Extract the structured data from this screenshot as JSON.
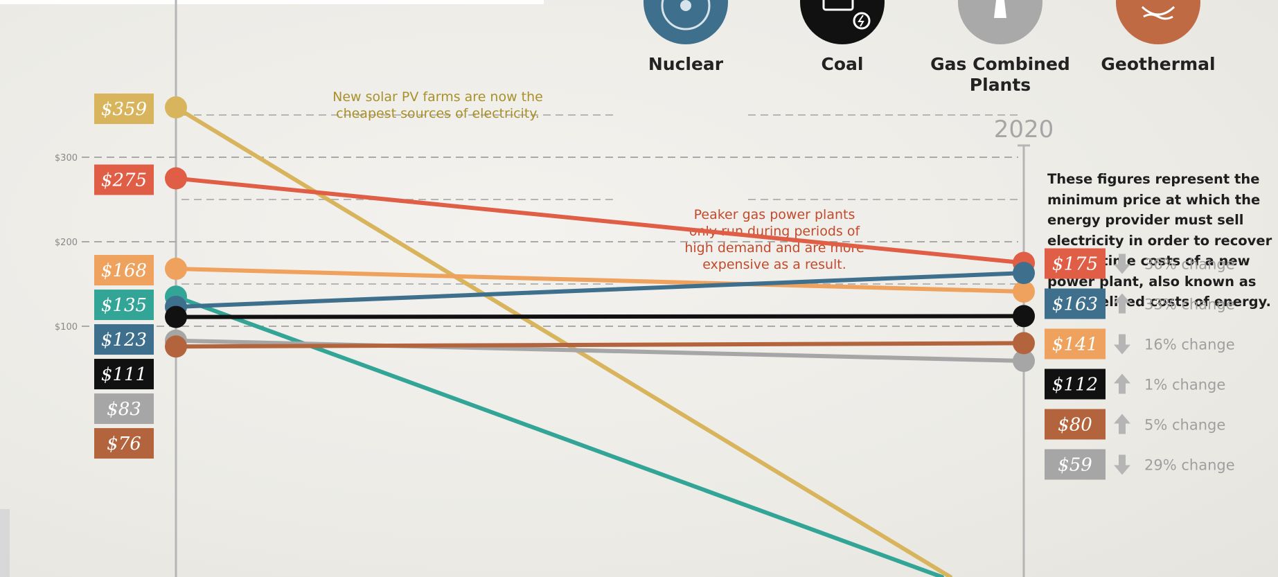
{
  "sources": [
    {
      "name": "Nuclear",
      "icon": "nuclear-icon",
      "color": "#3e6f8c"
    },
    {
      "name": "Coal",
      "icon": "coal-icon",
      "color": "#111111"
    },
    {
      "name": "Gas Combined Plants",
      "name_line1": "Gas Combined",
      "name_line2": "Plants",
      "icon": "gas-icon",
      "color": "#a9a9a9"
    },
    {
      "name": "Geothermal",
      "icon": "geothermal-icon",
      "color": "#bf6a42"
    }
  ],
  "year_end_label": "2020",
  "note": "These figures represent the minimum price at which the energy provider must sell electricity in order to recover the lifetime costs of a new power plant, also known as the levelized costs of energy.",
  "annotations": [
    {
      "lines": [
        "New solar PV farms are now the",
        "cheapest sources of electricity."
      ],
      "color": "#a8902a"
    },
    {
      "lines": [
        "Peaker gas power plants",
        "only run during periods of",
        "high demand and are more",
        "expensive as a result."
      ],
      "color": "#c24a2c"
    }
  ],
  "chart_data": {
    "type": "line",
    "y_ticks": [
      "$300",
      "$200",
      "$100"
    ],
    "grid": true,
    "ylim": [
      0,
      400
    ],
    "series": [
      {
        "start": 359,
        "end": null,
        "start_label": "$359",
        "end_label": null,
        "color": "#d8b45c",
        "change": null,
        "dir": null
      },
      {
        "start": 275,
        "end": 175,
        "start_label": "$275",
        "end_label": "$175",
        "color": "#df5e45",
        "change": "36% change",
        "dir": "down"
      },
      {
        "start": 168,
        "end": 141,
        "start_label": "$168",
        "end_label": "$141",
        "color": "#eea25d",
        "change": "16% change",
        "dir": "down"
      },
      {
        "start": 135,
        "end": null,
        "start_label": "$135",
        "end_label": null,
        "color": "#33a597",
        "change": null,
        "dir": null
      },
      {
        "start": 123,
        "end": 163,
        "start_label": "$123",
        "end_label": "$163",
        "color": "#3e6f8c",
        "change": "33% change",
        "dir": "up"
      },
      {
        "start": 111,
        "end": 112,
        "start_label": "$111",
        "end_label": "$112",
        "color": "#111111",
        "change": "1% change",
        "dir": "up"
      },
      {
        "start": 83,
        "end": 59,
        "start_label": "$83",
        "end_label": "$59",
        "color": "#a6a6a6",
        "change": "29% change",
        "dir": "down"
      },
      {
        "start": 76,
        "end": 80,
        "start_label": "$76",
        "end_label": "$80",
        "color": "#b4643c",
        "change": "5% change",
        "dir": "up"
      }
    ]
  }
}
